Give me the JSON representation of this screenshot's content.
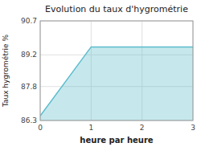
{
  "chart_data": {
    "type": "area",
    "title": "Evolution du taux d'hygrométrie",
    "x_label": "heure par heure",
    "y_label": "Taux hygrométrie %",
    "x": [
      0,
      1,
      3
    ],
    "values": [
      86.5,
      89.55,
      89.55
    ],
    "color": "#5bbccc",
    "xlim": [
      0,
      3
    ],
    "ylim": [
      86.3,
      90.7
    ],
    "xticks": [
      0,
      1,
      2,
      3
    ],
    "yticks": [
      86.3,
      87.8,
      89.2,
      90.7
    ],
    "grid": true
  }
}
